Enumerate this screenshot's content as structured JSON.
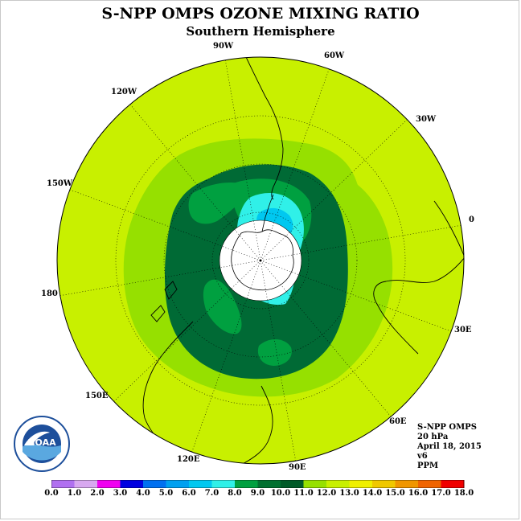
{
  "title": "S-NPP OMPS OZONE MIXING RATIO",
  "subtitle": "Southern Hemisphere",
  "longitude_labels": [
    "90W",
    "60W",
    "30W",
    "0",
    "30E",
    "60E",
    "90E",
    "120E",
    "150E",
    "180",
    "150W",
    "120W"
  ],
  "info": {
    "instrument": "S-NPP OMPS",
    "pressure": "20 hPa",
    "date": "April 18, 2015",
    "version": "v6",
    "units": "PPM"
  },
  "logo_text": "NOAA",
  "colorbar": {
    "ticks": [
      "0.0",
      "1.0",
      "2.0",
      "3.0",
      "4.0",
      "5.0",
      "6.0",
      "7.0",
      "8.0",
      "9.0",
      "10.0",
      "11.0",
      "12.0",
      "13.0",
      "14.0",
      "15.0",
      "16.0",
      "17.0",
      "18.0"
    ],
    "colors": [
      "#b070f0",
      "#d8a8f0",
      "#f000f0",
      "#0000e0",
      "#0070f0",
      "#00a0f0",
      "#00c8f0",
      "#30f0e8",
      "#00a040",
      "#007030",
      "#005a28",
      "#96e000",
      "#c8f000",
      "#f0f000",
      "#f0c800",
      "#f09600",
      "#f06400",
      "#f00000",
      "#8b5a3c"
    ]
  },
  "map_colors": {
    "ocean_bg": "#c8f000",
    "band_11": "#96e000",
    "band_9": "#007a3c",
    "band_8": "#00a040",
    "band_7": "#30f0e8",
    "band_6": "#00c8f0",
    "pole": "#ffffff"
  }
}
